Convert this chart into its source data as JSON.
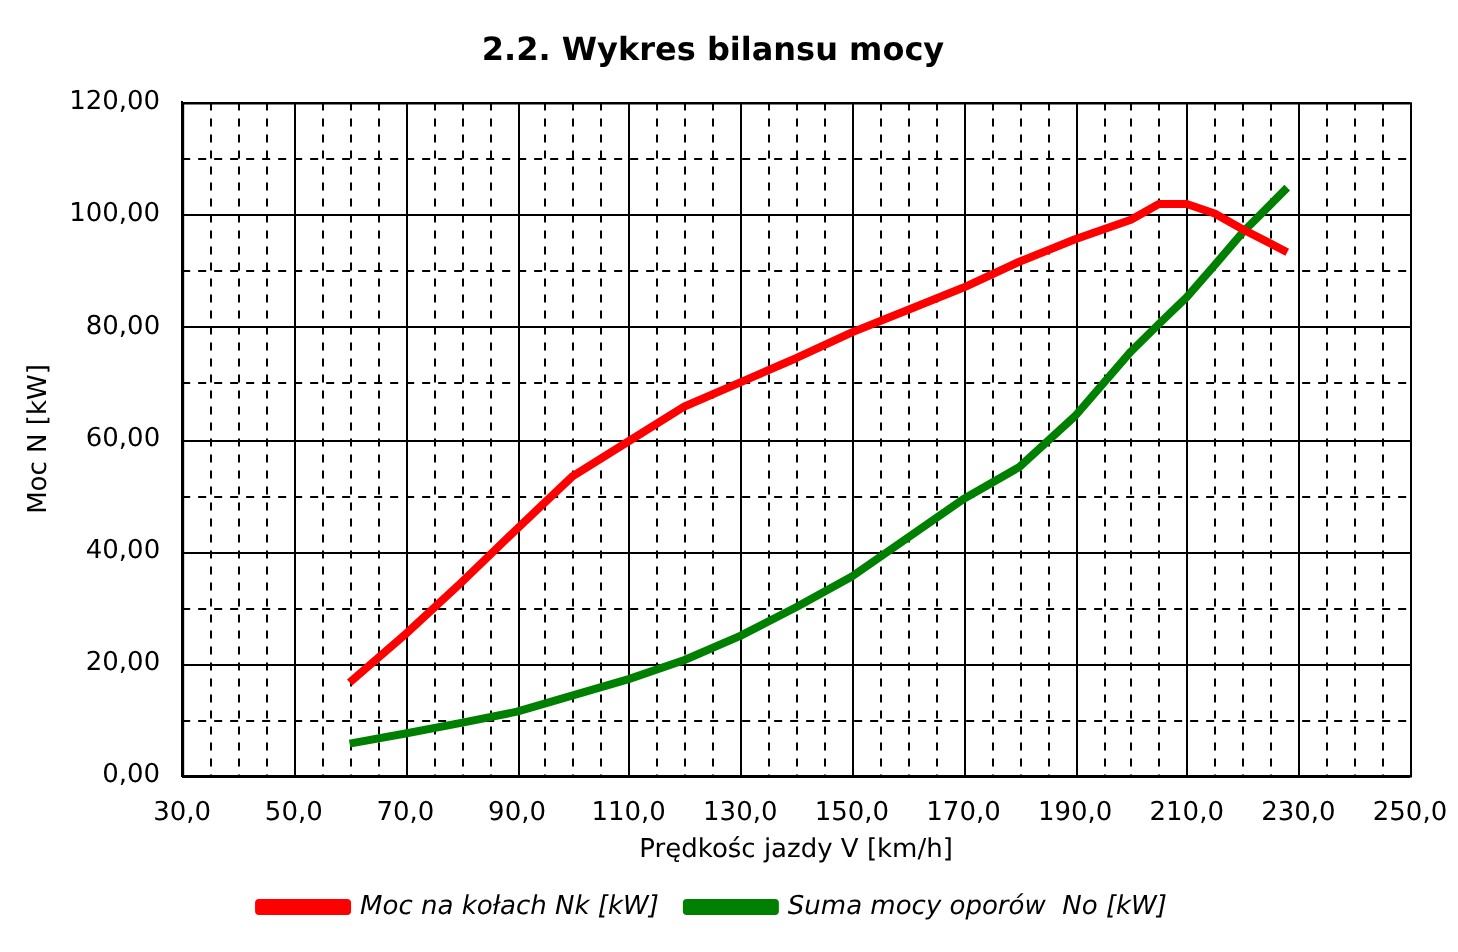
{
  "chart_data": {
    "type": "line",
    "title": "2.2. Wykres bilansu mocy",
    "xlabel": "Prędkośc jazdy V [km/h]",
    "ylabel": "Moc N [kW]",
    "x": [
      60,
      70,
      80,
      90,
      100,
      110,
      120,
      130,
      140,
      150,
      160,
      170,
      180,
      190,
      200,
      205,
      210,
      215,
      220,
      228
    ],
    "series": [
      {
        "name": "Moc na kołach Nk [kW]",
        "color": "#ff0000",
        "values": [
          16.6,
          25.2,
          34.4,
          44,
          53.4,
          59.6,
          65.8,
          70.1,
          74.4,
          79,
          83,
          87,
          91.6,
          95.6,
          99.1,
          101.9,
          101.9,
          100.2,
          97.4,
          93.3
        ]
      },
      {
        "name": "Suma mocy oporów  No [kW]",
        "color": "#008000",
        "values": [
          5.7,
          7.5,
          9.4,
          11.4,
          14.3,
          17.2,
          20.6,
          24.9,
          30,
          35.5,
          42.4,
          49.3,
          55,
          64.1,
          75.6,
          80.5,
          85.3,
          91,
          96.8,
          104.8
        ]
      }
    ],
    "xlim": [
      30,
      250
    ],
    "xticks": [
      {
        "value": 30,
        "label": "30,0"
      },
      {
        "value": 35,
        "label": null
      },
      {
        "value": 40,
        "label": null
      },
      {
        "value": 45,
        "label": null
      },
      {
        "value": 50,
        "label": "50,0"
      },
      {
        "value": 55,
        "label": null
      },
      {
        "value": 60,
        "label": null
      },
      {
        "value": 65,
        "label": null
      },
      {
        "value": 70,
        "label": "70,0"
      },
      {
        "value": 75,
        "label": null
      },
      {
        "value": 80,
        "label": null
      },
      {
        "value": 85,
        "label": null
      },
      {
        "value": 90,
        "label": "90,0"
      },
      {
        "value": 95,
        "label": null
      },
      {
        "value": 100,
        "label": null
      },
      {
        "value": 105,
        "label": null
      },
      {
        "value": 110,
        "label": "110,0"
      },
      {
        "value": 115,
        "label": null
      },
      {
        "value": 120,
        "label": null
      },
      {
        "value": 125,
        "label": null
      },
      {
        "value": 130,
        "label": "130,0"
      },
      {
        "value": 135,
        "label": null
      },
      {
        "value": 140,
        "label": null
      },
      {
        "value": 145,
        "label": null
      },
      {
        "value": 150,
        "label": "150,0"
      },
      {
        "value": 155,
        "label": null
      },
      {
        "value": 160,
        "label": null
      },
      {
        "value": 165,
        "label": null
      },
      {
        "value": 170,
        "label": "170,0"
      },
      {
        "value": 175,
        "label": null
      },
      {
        "value": 180,
        "label": null
      },
      {
        "value": 185,
        "label": null
      },
      {
        "value": 190,
        "label": "190,0"
      },
      {
        "value": 195,
        "label": null
      },
      {
        "value": 200,
        "label": null
      },
      {
        "value": 205,
        "label": null
      },
      {
        "value": 210,
        "label": "210,0"
      },
      {
        "value": 215,
        "label": null
      },
      {
        "value": 220,
        "label": null
      },
      {
        "value": 225,
        "label": null
      },
      {
        "value": 230,
        "label": "230,0"
      },
      {
        "value": 235,
        "label": null
      },
      {
        "value": 240,
        "label": null
      },
      {
        "value": 245,
        "label": null
      },
      {
        "value": 250,
        "label": "250,0"
      }
    ],
    "ylim": [
      0,
      120
    ],
    "yticks": [
      {
        "value": 0,
        "label": "0,00"
      },
      {
        "value": 10,
        "label": null
      },
      {
        "value": 20,
        "label": "20,00"
      },
      {
        "value": 30,
        "label": null
      },
      {
        "value": 40,
        "label": "40,00"
      },
      {
        "value": 50,
        "label": null
      },
      {
        "value": 60,
        "label": "60,00"
      },
      {
        "value": 70,
        "label": null
      },
      {
        "value": 80,
        "label": "80,00"
      },
      {
        "value": 90,
        "label": null
      },
      {
        "value": 100,
        "label": "100,00"
      },
      {
        "value": 110,
        "label": null
      },
      {
        "value": 120,
        "label": "120,00"
      }
    ],
    "grid": true,
    "legend": "bottom",
    "marker": "none",
    "line_style": "solid"
  }
}
